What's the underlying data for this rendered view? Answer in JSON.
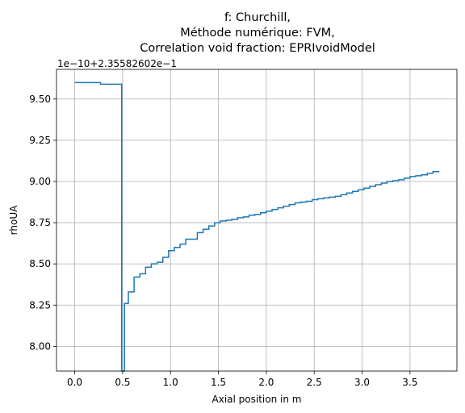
{
  "chart_data": {
    "type": "line",
    "step": true,
    "title_lines": [
      "f: Churchill,",
      "Méthode numérique: FVM,",
      "Correlation void fraction: EPRIvoidModel"
    ],
    "xlabel": "Axial position in m",
    "ylabel": "rhoUA",
    "y_offset_text": "1e−10+2.35582602e−1",
    "xlim": [
      -0.19,
      3.99
    ],
    "ylim": [
      7.85,
      9.68
    ],
    "x_ticks": [
      0.0,
      0.5,
      1.0,
      1.5,
      2.0,
      2.5,
      3.0,
      3.5
    ],
    "x_tick_labels": [
      "0.0",
      "0.5",
      "1.0",
      "1.5",
      "2.0",
      "2.5",
      "3.0",
      "3.5"
    ],
    "y_ticks": [
      8.0,
      8.25,
      8.5,
      8.75,
      9.0,
      9.25,
      9.5
    ],
    "y_tick_labels": [
      "8.00",
      "8.25",
      "8.50",
      "8.75",
      "9.00",
      "9.25",
      "9.50"
    ],
    "grid": true,
    "series": [
      {
        "color": "#1f77b4",
        "x": [
          0.0,
          0.27,
          0.49,
          0.52,
          0.56,
          0.62,
          0.68,
          0.74,
          0.8,
          0.86,
          0.92,
          0.98,
          1.04,
          1.1,
          1.16,
          1.22,
          1.28,
          1.34,
          1.4,
          1.46,
          1.52,
          1.58,
          1.64,
          1.7,
          1.76,
          1.82,
          1.88,
          1.94,
          2.0,
          2.06,
          2.12,
          2.18,
          2.24,
          2.3,
          2.36,
          2.42,
          2.48,
          2.54,
          2.6,
          2.66,
          2.72,
          2.78,
          2.84,
          2.9,
          2.96,
          3.02,
          3.08,
          3.14,
          3.2,
          3.26,
          3.32,
          3.38,
          3.44,
          3.5,
          3.56,
          3.62,
          3.68,
          3.74,
          3.8
        ],
        "y": [
          9.6,
          9.59,
          7.85,
          8.26,
          8.33,
          8.42,
          8.44,
          8.48,
          8.5,
          8.51,
          8.54,
          8.58,
          8.6,
          8.62,
          8.65,
          8.65,
          8.69,
          8.71,
          8.73,
          8.75,
          8.76,
          8.765,
          8.77,
          8.78,
          8.785,
          8.795,
          8.8,
          8.81,
          8.82,
          8.83,
          8.84,
          8.85,
          8.86,
          8.87,
          8.875,
          8.88,
          8.89,
          8.895,
          8.9,
          8.905,
          8.91,
          8.92,
          8.93,
          8.94,
          8.95,
          8.96,
          8.97,
          8.98,
          8.99,
          9.0,
          9.005,
          9.01,
          9.02,
          9.03,
          9.035,
          9.04,
          9.05,
          9.06,
          9.065
        ]
      }
    ]
  }
}
